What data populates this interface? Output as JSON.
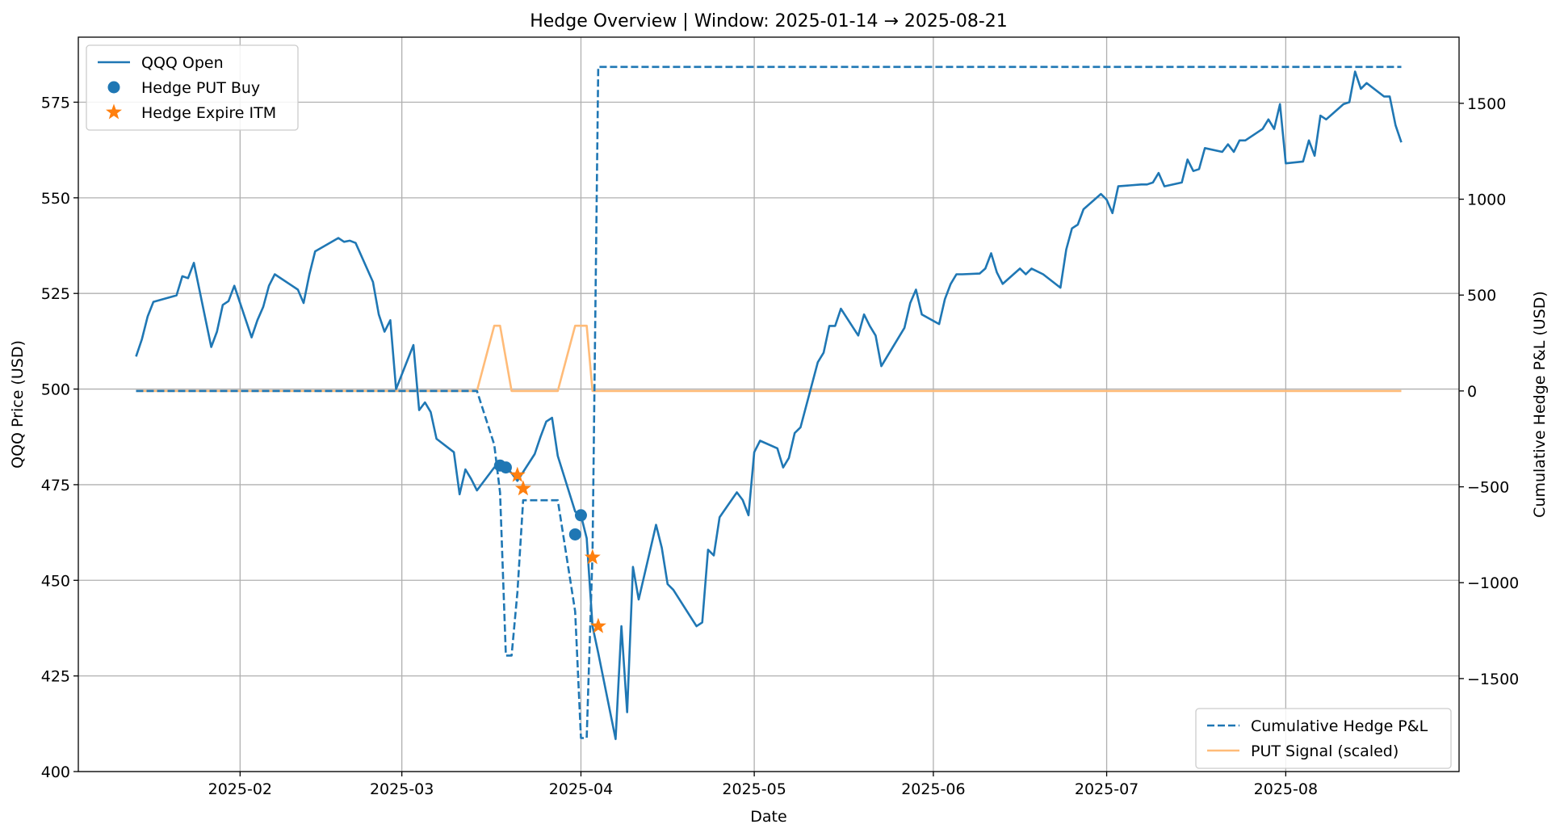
{
  "chart_data": {
    "type": "line",
    "title": "Hedge Overview  | Window: 2025-01-14 → 2025-08-21",
    "xlabel": "Date",
    "ylabel_left": "QQQ Price (USD)",
    "ylabel_right": "Cumulative Hedge P&L (USD)",
    "x_range": [
      "2025-01-04",
      "2025-08-31"
    ],
    "y_left_range": [
      400,
      592
    ],
    "y_right_range": [
      -1985,
      1845
    ],
    "grid": true,
    "x_ticks": [
      {
        "date": "2025-02-01",
        "label": "2025-02"
      },
      {
        "date": "2025-03-01",
        "label": "2025-03"
      },
      {
        "date": "2025-04-01",
        "label": "2025-04"
      },
      {
        "date": "2025-05-01",
        "label": "2025-05"
      },
      {
        "date": "2025-06-01",
        "label": "2025-06"
      },
      {
        "date": "2025-07-01",
        "label": "2025-07"
      },
      {
        "date": "2025-08-01",
        "label": "2025-08"
      }
    ],
    "y_left_ticks": [
      400,
      425,
      450,
      475,
      500,
      525,
      550,
      575
    ],
    "y_right_ticks": [
      {
        "value": -1500,
        "label": "−1500"
      },
      {
        "value": -1000,
        "label": "−1000"
      },
      {
        "value": -500,
        "label": "−500"
      },
      {
        "value": 0,
        "label": "0"
      },
      {
        "value": 500,
        "label": "500"
      },
      {
        "value": 1000,
        "label": "1000"
      },
      {
        "value": 1500,
        "label": "1500"
      }
    ],
    "colors": {
      "qqq": "#1f77b4",
      "pnl": "#1f77b4",
      "signal": "#ffbb78",
      "expire": "#ff7f0e",
      "buy": "#1f77b4",
      "grid": "#b0b0b0"
    },
    "legend_left": {
      "placement": "top-left",
      "entries": [
        {
          "label": "QQQ Open",
          "kind": "line"
        },
        {
          "label": "Hedge PUT Buy",
          "kind": "dot"
        },
        {
          "label": "Hedge Expire ITM",
          "kind": "star"
        }
      ]
    },
    "legend_right": {
      "placement": "bottom-right",
      "entries": [
        {
          "label": "Cumulative Hedge P&L",
          "kind": "dashed"
        },
        {
          "label": "PUT Signal (scaled)",
          "kind": "signal"
        }
      ]
    },
    "series": [
      {
        "name": "QQQ Open",
        "axis": "left",
        "style": "solid",
        "points": [
          [
            "2025-01-14",
            508.5
          ],
          [
            "2025-01-15",
            513
          ],
          [
            "2025-01-16",
            519
          ],
          [
            "2025-01-17",
            522.8
          ],
          [
            "2025-01-21",
            524.5
          ],
          [
            "2025-01-22",
            529.5
          ],
          [
            "2025-01-23",
            529
          ],
          [
            "2025-01-24",
            533
          ],
          [
            "2025-01-27",
            511
          ],
          [
            "2025-01-28",
            515
          ],
          [
            "2025-01-29",
            522
          ],
          [
            "2025-01-30",
            523
          ],
          [
            "2025-01-31",
            527
          ],
          [
            "2025-02-03",
            513.5
          ],
          [
            "2025-02-04",
            518
          ],
          [
            "2025-02-05",
            521.5
          ],
          [
            "2025-02-06",
            527
          ],
          [
            "2025-02-07",
            530
          ],
          [
            "2025-02-10",
            527
          ],
          [
            "2025-02-11",
            526
          ],
          [
            "2025-02-12",
            522.5
          ],
          [
            "2025-02-13",
            530
          ],
          [
            "2025-02-14",
            536
          ],
          [
            "2025-02-18",
            539.5
          ],
          [
            "2025-02-19",
            538.5
          ],
          [
            "2025-02-20",
            538.8
          ],
          [
            "2025-02-21",
            538.2
          ],
          [
            "2025-02-24",
            528
          ],
          [
            "2025-02-25",
            519.5
          ],
          [
            "2025-02-26",
            515
          ],
          [
            "2025-02-27",
            518
          ],
          [
            "2025-02-28",
            500
          ],
          [
            "2025-03-03",
            511.5
          ],
          [
            "2025-03-04",
            494.5
          ],
          [
            "2025-03-05",
            496.5
          ],
          [
            "2025-03-06",
            494
          ],
          [
            "2025-03-07",
            487
          ],
          [
            "2025-03-10",
            483.5
          ],
          [
            "2025-03-11",
            472.5
          ],
          [
            "2025-03-12",
            479
          ],
          [
            "2025-03-13",
            476.5
          ],
          [
            "2025-03-14",
            473.5
          ],
          [
            "2025-03-17",
            479.5
          ],
          [
            "2025-03-18",
            479
          ],
          [
            "2025-03-19",
            479.5
          ],
          [
            "2025-03-20",
            478
          ],
          [
            "2025-03-21",
            476
          ],
          [
            "2025-03-24",
            483
          ],
          [
            "2025-03-25",
            487.5
          ],
          [
            "2025-03-26",
            491.5
          ],
          [
            "2025-03-27",
            492.5
          ],
          [
            "2025-03-28",
            482.5
          ],
          [
            "2025-03-31",
            468
          ],
          [
            "2025-04-01",
            467
          ],
          [
            "2025-04-02",
            461
          ],
          [
            "2025-04-03",
            438
          ],
          [
            "2025-04-04",
            431
          ],
          [
            "2025-04-07",
            408.5
          ],
          [
            "2025-04-08",
            438
          ],
          [
            "2025-04-09",
            415.5
          ],
          [
            "2025-04-10",
            453.5
          ],
          [
            "2025-04-11",
            445
          ],
          [
            "2025-04-14",
            464.5
          ],
          [
            "2025-04-15",
            458.5
          ],
          [
            "2025-04-16",
            449
          ],
          [
            "2025-04-17",
            447.5
          ],
          [
            "2025-04-21",
            438
          ],
          [
            "2025-04-22",
            439
          ],
          [
            "2025-04-23",
            458
          ],
          [
            "2025-04-24",
            456.5
          ],
          [
            "2025-04-25",
            466.5
          ],
          [
            "2025-04-28",
            473
          ],
          [
            "2025-04-29",
            471
          ],
          [
            "2025-04-30",
            467
          ],
          [
            "2025-05-01",
            483.5
          ],
          [
            "2025-05-02",
            486.5
          ],
          [
            "2025-05-05",
            484.5
          ],
          [
            "2025-05-06",
            479.5
          ],
          [
            "2025-05-07",
            482
          ],
          [
            "2025-05-08",
            488.5
          ],
          [
            "2025-05-09",
            490
          ],
          [
            "2025-05-12",
            507
          ],
          [
            "2025-05-13",
            509.5
          ],
          [
            "2025-05-14",
            516.5
          ],
          [
            "2025-05-15",
            516.5
          ],
          [
            "2025-05-16",
            521
          ],
          [
            "2025-05-19",
            514
          ],
          [
            "2025-05-20",
            519.5
          ],
          [
            "2025-05-21",
            516.5
          ],
          [
            "2025-05-22",
            514
          ],
          [
            "2025-05-23",
            506
          ],
          [
            "2025-05-27",
            516
          ],
          [
            "2025-05-28",
            522.5
          ],
          [
            "2025-05-29",
            526
          ],
          [
            "2025-05-30",
            519.5
          ],
          [
            "2025-06-02",
            517
          ],
          [
            "2025-06-03",
            523.5
          ],
          [
            "2025-06-04",
            527.5
          ],
          [
            "2025-06-05",
            530
          ],
          [
            "2025-06-06",
            530
          ],
          [
            "2025-06-09",
            530.2
          ],
          [
            "2025-06-10",
            531.5
          ],
          [
            "2025-06-11",
            535.5
          ],
          [
            "2025-06-12",
            530.5
          ],
          [
            "2025-06-13",
            527.5
          ],
          [
            "2025-06-16",
            531.5
          ],
          [
            "2025-06-17",
            530
          ],
          [
            "2025-06-18",
            531.5
          ],
          [
            "2025-06-20",
            530
          ],
          [
            "2025-06-23",
            526.5
          ],
          [
            "2025-06-24",
            536.5
          ],
          [
            "2025-06-25",
            542
          ],
          [
            "2025-06-26",
            543
          ],
          [
            "2025-06-27",
            547
          ],
          [
            "2025-06-30",
            551
          ],
          [
            "2025-07-01",
            549.5
          ],
          [
            "2025-07-02",
            546
          ],
          [
            "2025-07-03",
            553
          ],
          [
            "2025-07-07",
            553.5
          ],
          [
            "2025-07-08",
            553.5
          ],
          [
            "2025-07-09",
            554
          ],
          [
            "2025-07-10",
            556.5
          ],
          [
            "2025-07-11",
            553
          ],
          [
            "2025-07-14",
            554
          ],
          [
            "2025-07-15",
            560
          ],
          [
            "2025-07-16",
            557
          ],
          [
            "2025-07-17",
            557.5
          ],
          [
            "2025-07-18",
            563
          ],
          [
            "2025-07-21",
            562
          ],
          [
            "2025-07-22",
            564
          ],
          [
            "2025-07-23",
            562
          ],
          [
            "2025-07-24",
            565
          ],
          [
            "2025-07-25",
            565
          ],
          [
            "2025-07-28",
            568
          ],
          [
            "2025-07-29",
            570.5
          ],
          [
            "2025-07-30",
            568
          ],
          [
            "2025-07-31",
            574.5
          ],
          [
            "2025-08-01",
            559
          ],
          [
            "2025-08-04",
            559.5
          ],
          [
            "2025-08-05",
            565
          ],
          [
            "2025-08-06",
            561
          ],
          [
            "2025-08-07",
            571.5
          ],
          [
            "2025-08-08",
            570.5
          ],
          [
            "2025-08-11",
            574.5
          ],
          [
            "2025-08-12",
            575
          ],
          [
            "2025-08-13",
            583
          ],
          [
            "2025-08-14",
            578.5
          ],
          [
            "2025-08-15",
            580
          ],
          [
            "2025-08-18",
            576.5
          ],
          [
            "2025-08-19",
            576.5
          ],
          [
            "2025-08-20",
            569
          ],
          [
            "2025-08-21",
            564.5
          ]
        ]
      },
      {
        "name": "Hedge PUT Buy",
        "axis": "left",
        "style": "dot",
        "points": [
          [
            "2025-03-18",
            480
          ],
          [
            "2025-03-19",
            479.5
          ],
          [
            "2025-03-31",
            462
          ],
          [
            "2025-04-01",
            467
          ]
        ]
      },
      {
        "name": "Hedge Expire ITM",
        "axis": "left",
        "style": "star",
        "points": [
          [
            "2025-03-21",
            477.5
          ],
          [
            "2025-03-22",
            474
          ],
          [
            "2025-04-03",
            456
          ],
          [
            "2025-04-04",
            438
          ]
        ]
      },
      {
        "name": "Cumulative Hedge P&L",
        "axis": "right",
        "style": "dashed",
        "points": [
          [
            "2025-01-14",
            0
          ],
          [
            "2025-03-14",
            0
          ],
          [
            "2025-03-17",
            -280
          ],
          [
            "2025-03-18",
            -530
          ],
          [
            "2025-03-19",
            -1380
          ],
          [
            "2025-03-20",
            -1380
          ],
          [
            "2025-03-21",
            -1050
          ],
          [
            "2025-03-22",
            -570
          ],
          [
            "2025-03-28",
            -570
          ],
          [
            "2025-03-31",
            -1150
          ],
          [
            "2025-04-01",
            -1810
          ],
          [
            "2025-04-02",
            -1810
          ],
          [
            "2025-04-03",
            -850
          ],
          [
            "2025-04-04",
            1690
          ],
          [
            "2025-08-21",
            1690
          ]
        ]
      },
      {
        "name": "PUT Signal (scaled)",
        "axis": "right",
        "style": "signal",
        "points": [
          [
            "2025-01-14",
            0
          ],
          [
            "2025-03-14",
            0
          ],
          [
            "2025-03-17",
            340
          ],
          [
            "2025-03-18",
            340
          ],
          [
            "2025-03-20",
            0
          ],
          [
            "2025-03-28",
            0
          ],
          [
            "2025-03-31",
            340
          ],
          [
            "2025-04-02",
            340
          ],
          [
            "2025-04-03",
            0
          ],
          [
            "2025-08-21",
            0
          ]
        ]
      }
    ]
  }
}
